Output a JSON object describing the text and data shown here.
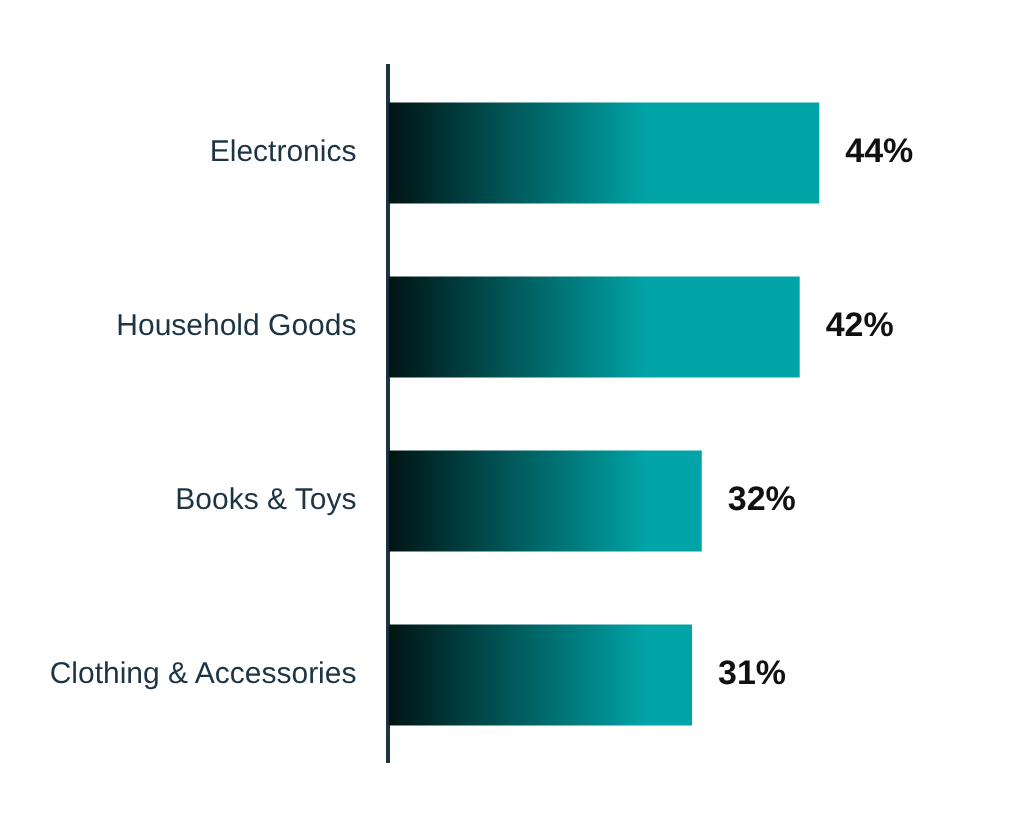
{
  "chart_data": {
    "type": "bar",
    "orientation": "horizontal",
    "categories": [
      "Electronics",
      "Household Goods",
      "Books & Toys",
      "Clothing & Accessories"
    ],
    "values": [
      44,
      42,
      32,
      31
    ],
    "value_labels": [
      "44%",
      "42%",
      "32%",
      "31%"
    ],
    "color": "#00a3a6",
    "grid": false,
    "legend": false
  }
}
